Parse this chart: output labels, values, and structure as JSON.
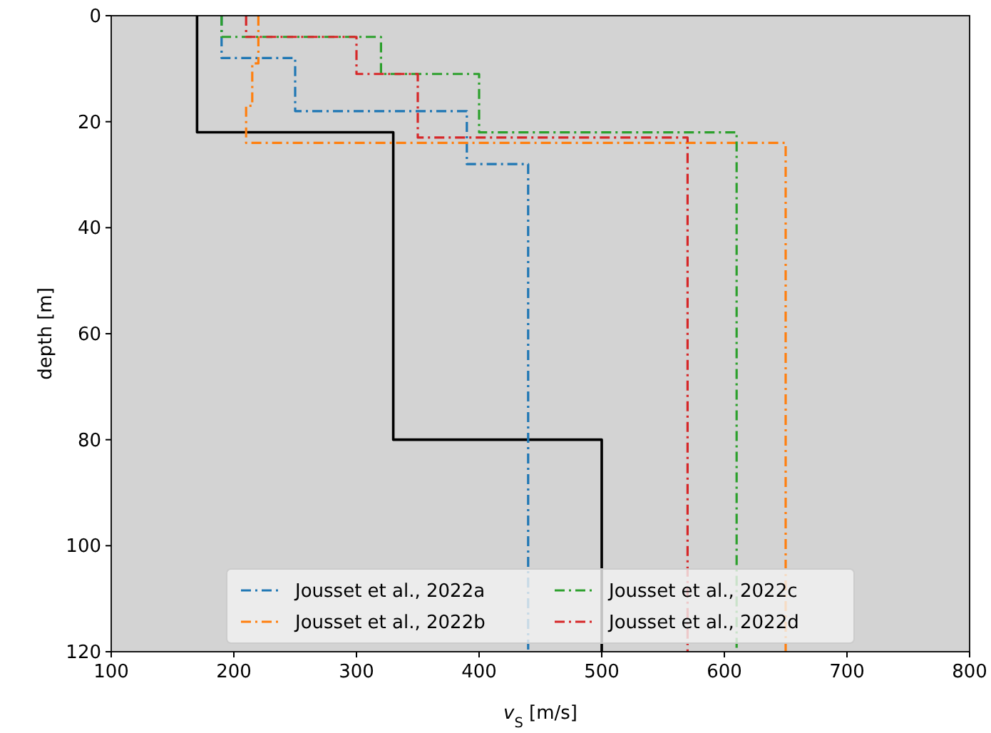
{
  "chart_data": {
    "type": "step",
    "orientation": "horizontal",
    "xlabel": "v$_{S}$ [m/s]",
    "ylabel": "depth [m]",
    "xlim": [
      100,
      800
    ],
    "xticks": [
      100,
      200,
      300,
      400,
      500,
      600,
      700,
      800
    ],
    "ylim": [
      120,
      0
    ],
    "yticks": [
      0,
      20,
      40,
      60,
      80,
      100,
      120
    ],
    "grid": false,
    "legend": "bottom",
    "line_style": "dashdot",
    "series": [
      {
        "color": "#000000",
        "line_style": "solid",
        "x": [
          0,
          22,
          80,
          120
        ],
        "values": [
          170,
          330,
          500,
          500
        ]
      },
      {
        "name": "Jousset et al., 2022a",
        "color": "#1f77b4",
        "x": [
          0,
          8,
          18,
          28,
          120
        ],
        "values": [
          190,
          250,
          390,
          440,
          440
        ]
      },
      {
        "name": "Jousset et al., 2022b",
        "color": "#ff7f0e",
        "x": [
          0,
          9,
          17,
          24,
          120
        ],
        "values": [
          220,
          215,
          210,
          650,
          650
        ]
      },
      {
        "name": "Jousset et al., 2022c",
        "color": "#2ca02c",
        "x": [
          0,
          4,
          11,
          22,
          120
        ],
        "values": [
          190,
          320,
          400,
          610,
          610
        ]
      },
      {
        "name": "Jousset et al., 2022d",
        "color": "#d62728",
        "x": [
          0,
          4,
          11,
          23,
          120
        ],
        "values": [
          210,
          300,
          350,
          570,
          570
        ]
      }
    ]
  }
}
